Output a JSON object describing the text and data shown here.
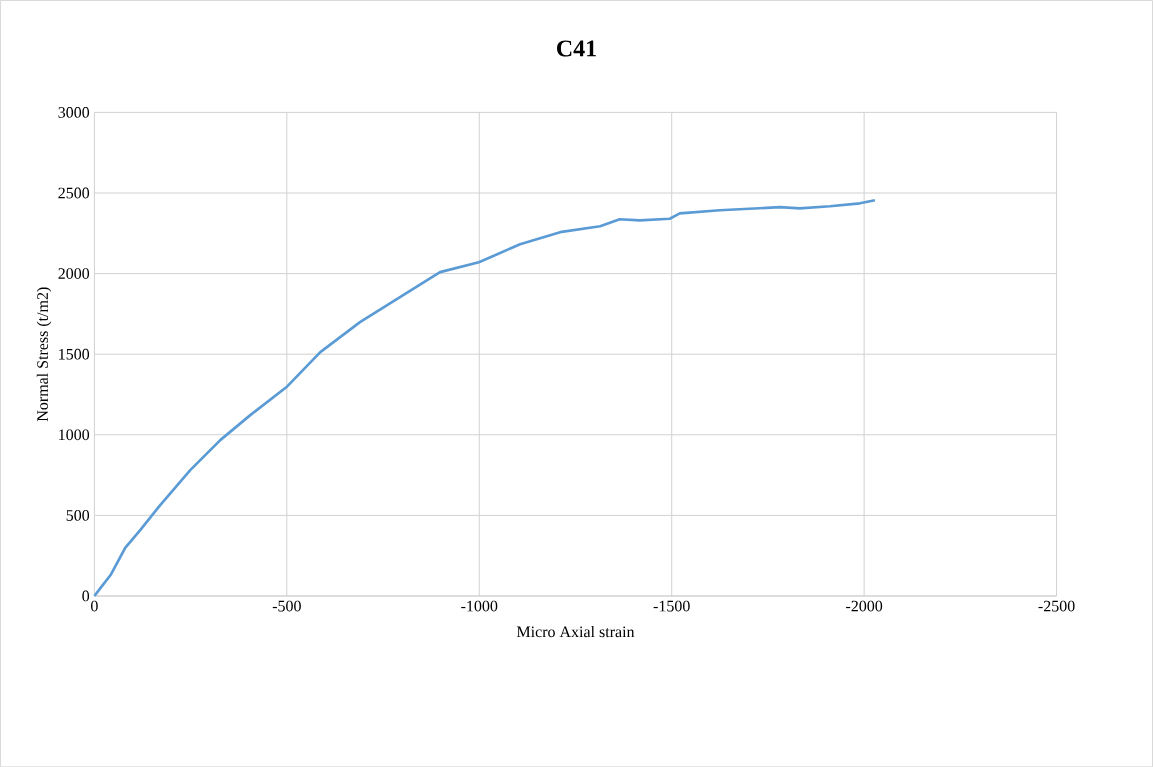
{
  "chart_data": {
    "type": "line",
    "title": "C41",
    "xlabel": "Micro Axial strain",
    "ylabel": "Normal Stress (t/m2)",
    "xlim": [
      0,
      -2500
    ],
    "xticks": [
      0,
      -500,
      -1000,
      -1500,
      -2000,
      -2500
    ],
    "ylim": [
      0,
      3000
    ],
    "yticks": [
      0,
      500,
      1000,
      1500,
      2000,
      2500,
      3000
    ],
    "grid": true,
    "legend": false,
    "marker": "none",
    "line_style": "solid",
    "series": [
      {
        "color": "#5b9bd5",
        "x": [
          0,
          -16,
          -42,
          -80,
          -119,
          -171,
          -249,
          -327,
          -405,
          -501,
          -587,
          -690,
          -794,
          -898,
          -999,
          -1106,
          -1210,
          -1314,
          -1365,
          -1417,
          -1495,
          -1521,
          -1625,
          -1781,
          -1833,
          -1911,
          -1989,
          -2028
        ],
        "values": [
          0,
          50,
          130,
          298,
          409,
          564,
          781,
          967,
          1122,
          1300,
          1513,
          1699,
          1854,
          2009,
          2070,
          2182,
          2257,
          2294,
          2337,
          2330,
          2340,
          2374,
          2393,
          2412,
          2405,
          2418,
          2436,
          2455
        ]
      }
    ]
  }
}
